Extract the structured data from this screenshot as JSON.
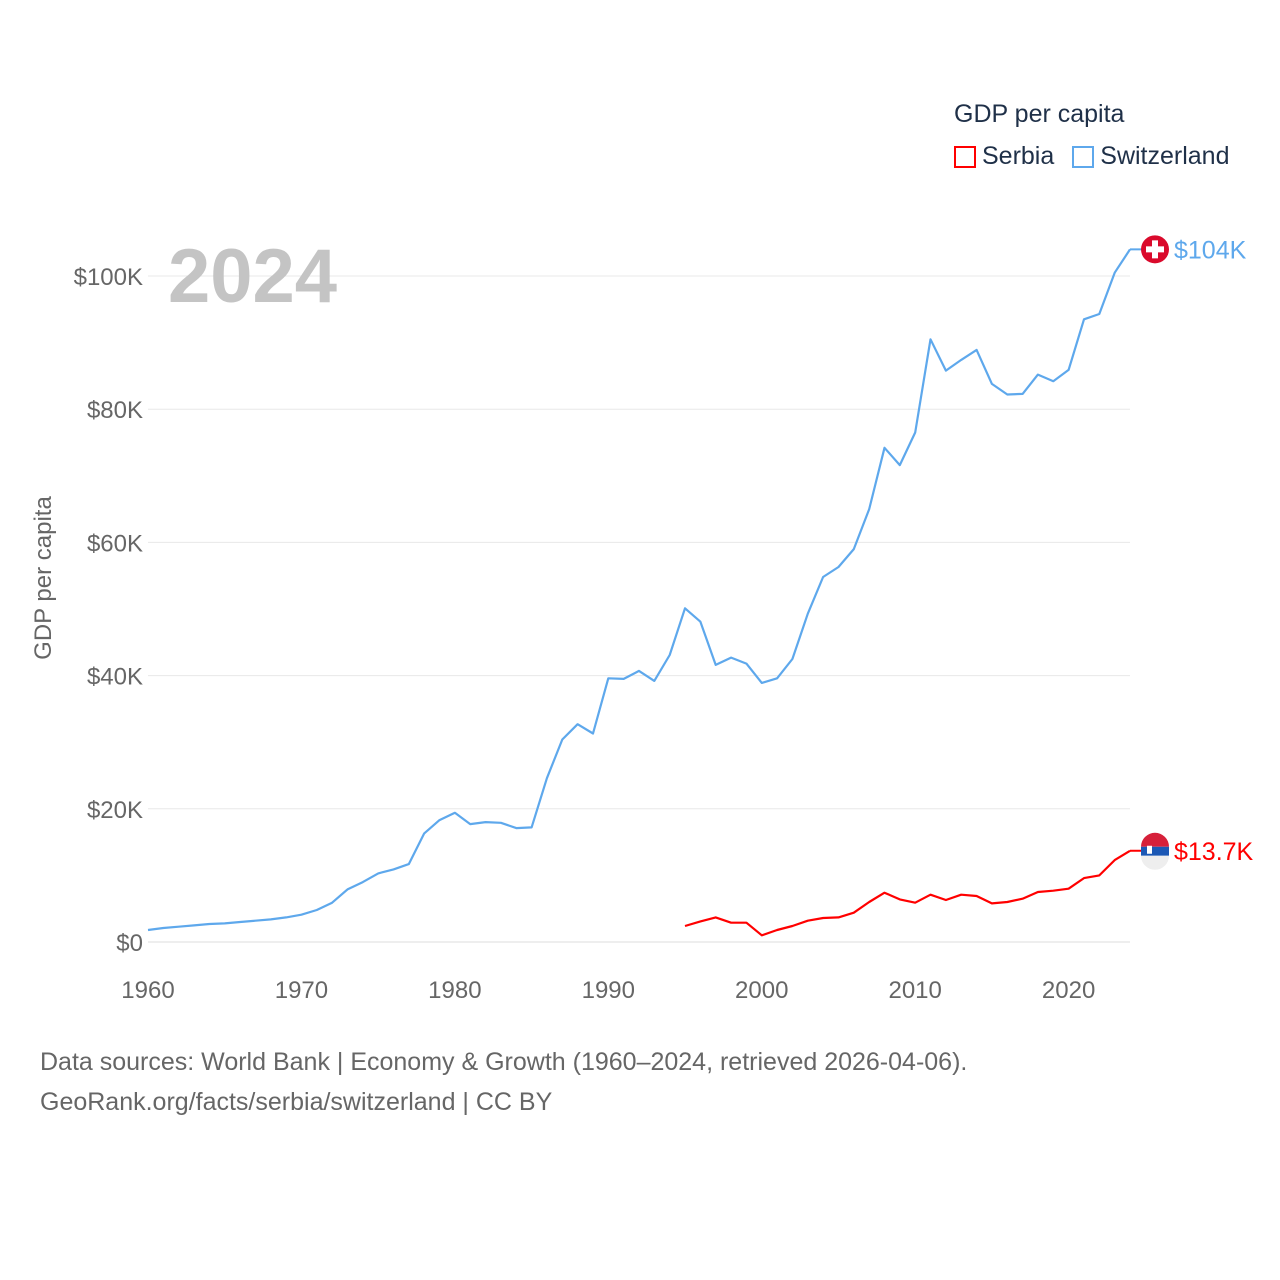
{
  "chart_data": {
    "type": "line",
    "title": "",
    "year_label": "2024",
    "ylabel": "GDP per capita",
    "xlabel": "",
    "ylim": [
      0,
      108
    ],
    "xlim": [
      1960,
      2024
    ],
    "y_ticks": [
      {
        "value": 0,
        "label": "$0"
      },
      {
        "value": 20,
        "label": "$20K"
      },
      {
        "value": 40,
        "label": "$40K"
      },
      {
        "value": 60,
        "label": "$60K"
      },
      {
        "value": 80,
        "label": "$80K"
      },
      {
        "value": 100,
        "label": "$100K"
      }
    ],
    "x_ticks": [
      {
        "value": 1960,
        "label": "1960"
      },
      {
        "value": 1970,
        "label": "1970"
      },
      {
        "value": 1980,
        "label": "1980"
      },
      {
        "value": 1990,
        "label": "1990"
      },
      {
        "value": 2000,
        "label": "2000"
      },
      {
        "value": 2010,
        "label": "2010"
      },
      {
        "value": 2020,
        "label": "2020"
      }
    ],
    "grid": true,
    "legend": {
      "title": "GDP per capita",
      "placement": "top-right"
    },
    "series": [
      {
        "name": "Serbia",
        "color": "#ff0000",
        "end_label": "$13.7K",
        "start_year": 1995,
        "values": [
          2.4,
          3.1,
          3.7,
          2.9,
          2.9,
          1.0,
          1.8,
          2.4,
          3.2,
          3.6,
          3.7,
          4.4,
          6.0,
          7.4,
          6.4,
          5.9,
          7.1,
          6.3,
          7.1,
          6.9,
          5.8,
          6.0,
          6.5,
          7.5,
          7.7,
          8.0,
          9.6,
          10.0,
          12.3,
          13.7
        ]
      },
      {
        "name": "Switzerland",
        "color": "#5ea8ec",
        "end_label": "$104K",
        "start_year": 1960,
        "values": [
          1.8,
          2.1,
          2.3,
          2.5,
          2.7,
          2.8,
          3.0,
          3.2,
          3.4,
          3.7,
          4.1,
          4.8,
          5.9,
          7.9,
          9.0,
          10.3,
          10.9,
          11.7,
          16.3,
          18.3,
          19.4,
          17.7,
          18.0,
          17.9,
          17.1,
          17.2,
          24.6,
          30.4,
          32.7,
          31.3,
          39.6,
          39.5,
          40.7,
          39.2,
          43.1,
          50.1,
          48.1,
          41.6,
          42.7,
          41.8,
          38.9,
          39.6,
          42.5,
          49.3,
          54.8,
          56.3,
          59.0,
          65.0,
          74.2,
          71.6,
          76.5,
          90.5,
          85.8,
          87.4,
          88.9,
          83.8,
          82.2,
          82.3,
          85.2,
          84.2,
          85.9,
          93.5,
          94.3,
          100.5,
          104.0
        ]
      }
    ]
  },
  "footer": {
    "line1": "Data sources: World Bank | Economy & Growth (1960–2024, retrieved 2026-04-06).",
    "line2": "GeoRank.org/facts/serbia/switzerland | CC BY"
  }
}
